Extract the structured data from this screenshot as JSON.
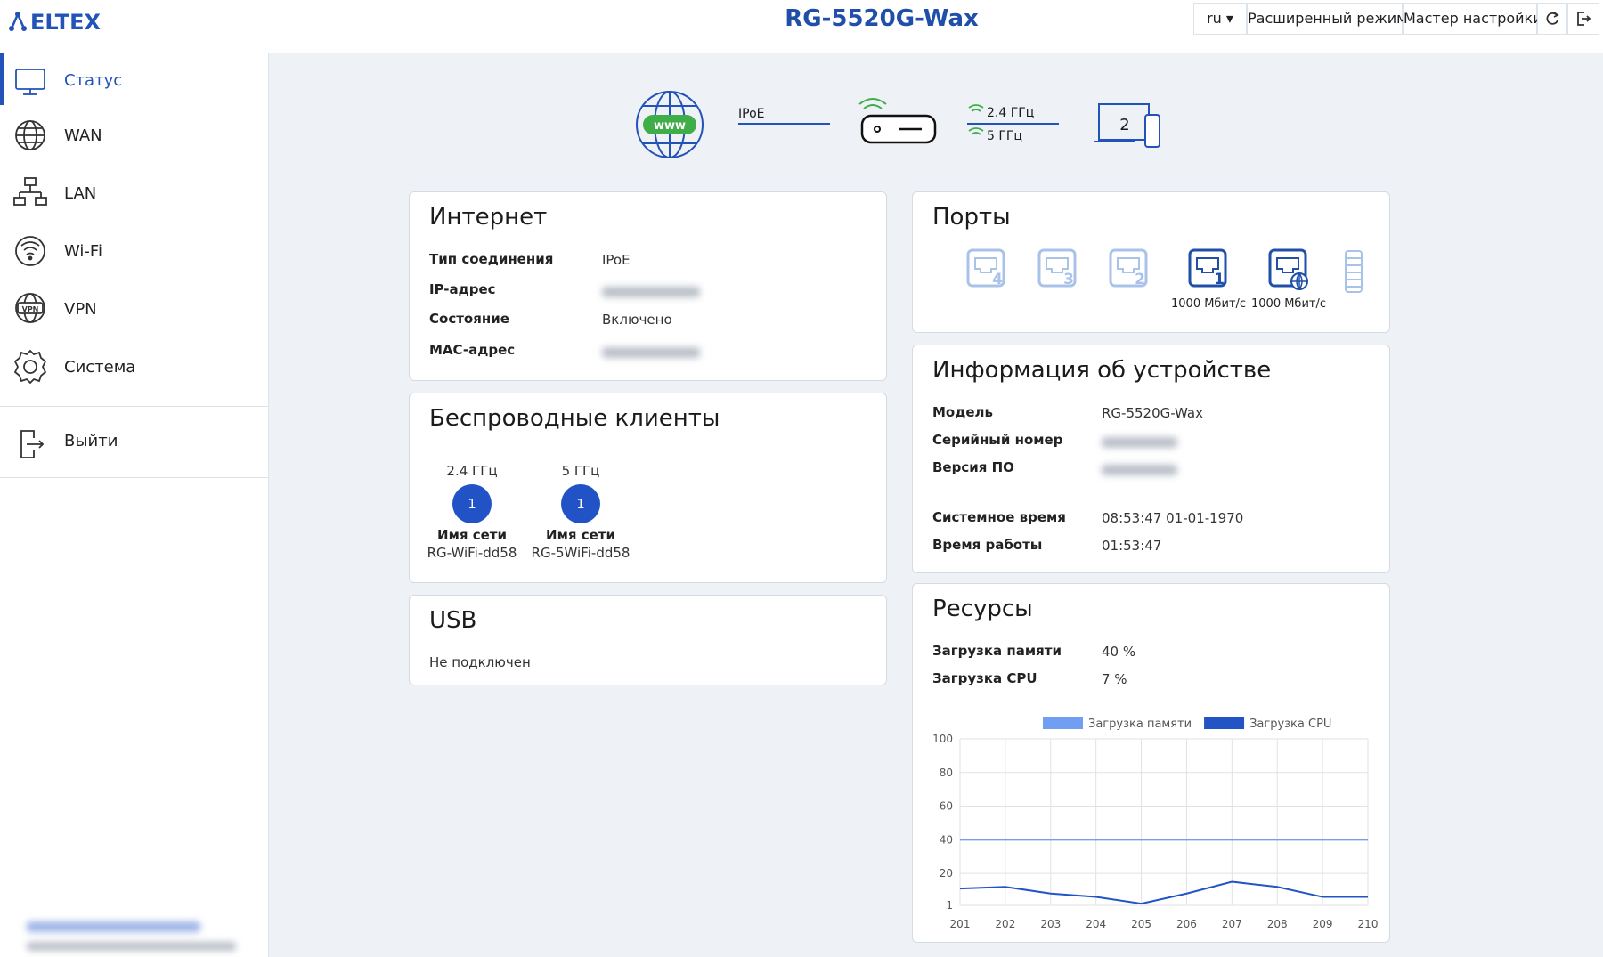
{
  "header": {
    "logo": "ELTEX",
    "title": "RG-5520G-Wax",
    "language": "ru",
    "buttons": [
      "Расширенный режим",
      "Мастер настройки"
    ]
  },
  "sidebar": {
    "menu": [
      "Статус",
      "WAN",
      "LAN",
      "Wi-Fi",
      "VPN",
      "Система"
    ],
    "logout": "Выйти"
  },
  "topology": {
    "globe": "www",
    "connection": "IPoE",
    "bands": [
      "2.4 ГГц",
      "5 ГГц"
    ],
    "clients": "2"
  },
  "internet": {
    "title": "Интернет",
    "rows": [
      {
        "label": "Тип соединения",
        "value": "IPoE"
      },
      {
        "label": "IP-адрес"
      },
      {
        "label": "Состояние",
        "value": "Включено"
      },
      {
        "label": "MAC-адрес"
      }
    ]
  },
  "wireless": {
    "title": "Беспроводные клиенты",
    "bands": [
      {
        "band": "2.4 ГГц",
        "clients": "1",
        "network_label": "Имя сети",
        "ssid": "RG-WiFi-dd58"
      },
      {
        "band": "5 ГГц",
        "clients": "1",
        "network_label": "Имя сети",
        "ssid": "RG-5WiFi-dd58"
      }
    ]
  },
  "usb": {
    "title": "USB",
    "status": "Не подключен"
  },
  "ports": {
    "title": "Порты",
    "ports": [
      {
        "number": "4"
      },
      {
        "number": "3"
      },
      {
        "number": "2"
      },
      {
        "number": "1",
        "speed": "1000 Мбит/с"
      },
      {
        "speed": "1000 Мбит/с"
      }
    ]
  },
  "device_info": {
    "title": "Информация об устройстве",
    "rows": [
      {
        "label": "Модель",
        "value": "RG-5520G-Wax"
      },
      {
        "label": "Серийный номер"
      },
      {
        "label": "Версия ПО"
      },
      {
        "label": "Системное время",
        "value": "08:53:47 01-01-1970"
      },
      {
        "label": "Время работы",
        "value": "01:53:47"
      }
    ]
  },
  "resources": {
    "title": "Ресурсы",
    "rows": [
      {
        "label": "Загрузка памяти",
        "value": "40 %"
      },
      {
        "label": "Загрузка CPU",
        "value": "7 %"
      }
    ]
  },
  "chart_data": {
    "type": "line",
    "x": [
      201,
      202,
      203,
      204,
      205,
      206,
      207,
      208,
      209,
      210
    ],
    "xlim": [
      201,
      210
    ],
    "xticks": [
      201,
      202,
      203,
      204,
      205,
      206,
      207,
      208,
      209,
      210
    ],
    "ylim": [
      1,
      100
    ],
    "yticks": [
      1,
      20,
      40,
      60,
      80,
      100
    ],
    "grid": true,
    "legend": "top",
    "series": [
      {
        "name": "Загрузка памяти",
        "color": "#6f9ef2",
        "values": [
          40,
          40,
          40,
          40,
          40,
          40,
          40,
          40,
          40,
          40
        ]
      },
      {
        "name": "Загрузка CPU",
        "color": "#2254c5",
        "values": [
          11,
          12,
          8,
          6,
          2,
          8,
          15,
          12,
          6,
          6
        ]
      }
    ]
  }
}
